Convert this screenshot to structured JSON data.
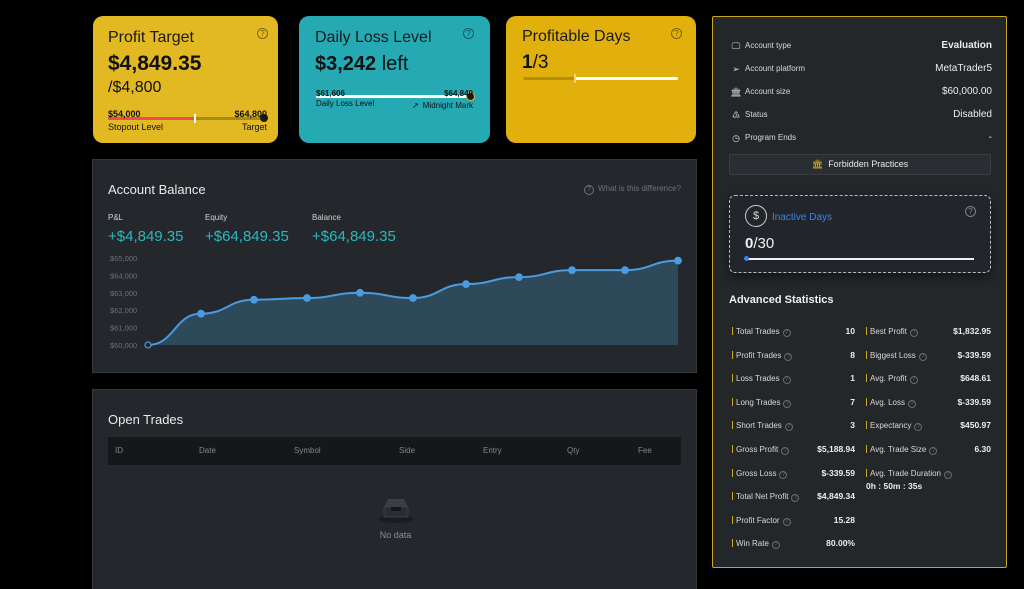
{
  "profit_target": {
    "title": "Profit Target",
    "current": "$4,849.35",
    "target_sub": "/$4,800",
    "stopout_value": "$54,000",
    "stopout_label": "Stopout Level",
    "target_value": "$64,800",
    "target_label": "Target",
    "progress_fraction": 0.56,
    "colors": {
      "bg": "#e2b922",
      "fill": "#ef4a57"
    }
  },
  "daily_loss": {
    "title": "Daily Loss Level",
    "amount": "$3,242",
    "suffix": "left",
    "low_value": "$61,606",
    "low_label": "Daily Loss Level",
    "high_value": "$64,849",
    "midnight_label": "Midnight Mark",
    "colors": {
      "bg": "#25a9b3"
    }
  },
  "profitable_days": {
    "title": "Profitable Days",
    "done": "1",
    "total": "/3",
    "progress_fraction": 0.333,
    "colors": {
      "bg": "#e2b00c"
    }
  },
  "account_balance": {
    "title": "Account Balance",
    "diff_link": "What is this difference?",
    "pnl_label": "P&L",
    "pnl_value": "+$4,849.35",
    "equity_label": "Equity",
    "equity_value": "+$64,849.35",
    "balance_label": "Balance",
    "balance_value": "+$64,849.35"
  },
  "chart_data": {
    "type": "area",
    "x": [
      1,
      2,
      3,
      4,
      5,
      6,
      7,
      8,
      9,
      10,
      11
    ],
    "series": [
      {
        "values": [
          60000,
          61800,
          62600,
          62700,
          63000,
          62700,
          63500,
          63900,
          64300,
          64300,
          64849
        ]
      }
    ],
    "yticks": [
      "$60,000",
      "$61,000",
      "$62,000",
      "$63,000",
      "$64,000",
      "$65,000"
    ],
    "ylim": [
      60000,
      65000
    ],
    "colors": {
      "line": "#4a9be0",
      "area": "#2e4a5a"
    }
  },
  "open_trades": {
    "title": "Open Trades",
    "columns": [
      "ID",
      "Date",
      "Symbol",
      "Side",
      "Entry",
      "Qty",
      "Fee"
    ],
    "empty_text": "No data"
  },
  "account_info": {
    "rows": [
      {
        "icon": "monitor-icon",
        "glyph": "🖵",
        "label": "Account type",
        "value": "Evaluation",
        "bold": true
      },
      {
        "icon": "send-icon",
        "glyph": "➢",
        "label": "Account platform",
        "value": "MetaTrader5",
        "bold": false
      },
      {
        "icon": "bank-icon",
        "glyph": "🏛",
        "label": "Account size",
        "value": "$60,000.00",
        "bold": false
      },
      {
        "icon": "status-icon",
        "glyph": "♳",
        "label": "Status",
        "value": "Disabled",
        "bold": false
      },
      {
        "icon": "clock-icon",
        "glyph": "◷",
        "label": "Program Ends",
        "value": "-",
        "bold": false
      }
    ],
    "forbidden_label": "Forbidden Practices"
  },
  "inactive_days": {
    "label": "Inactive Days",
    "count": "0",
    "total": "/30"
  },
  "advanced_stats": {
    "title": "Advanced Statistics",
    "left": [
      {
        "label": "Total Trades",
        "value": "10"
      },
      {
        "label": "Profit Trades",
        "value": "8"
      },
      {
        "label": "Loss Trades",
        "value": "1"
      },
      {
        "label": "Long Trades",
        "value": "7"
      },
      {
        "label": "Short Trades",
        "value": "3"
      },
      {
        "label": "Gross Profit",
        "value": "$5,188.94"
      },
      {
        "label": "Gross Loss",
        "value": "$-339.59"
      },
      {
        "label": "Total Net Profit",
        "value": "$4,849.34"
      },
      {
        "label": "Profit Factor",
        "value": "15.28"
      },
      {
        "label": "Win Rate",
        "value": "80.00%"
      }
    ],
    "right": [
      {
        "label": "Best Profit",
        "value": "$1,832.95"
      },
      {
        "label": "Biggest Loss",
        "value": "$-339.59"
      },
      {
        "label": "Avg. Profit",
        "value": "$648.61"
      },
      {
        "label": "Avg. Loss",
        "value": "$-339.59"
      },
      {
        "label": "Expectancy",
        "value": "$450.97"
      },
      {
        "label": "Avg. Trade Size",
        "value": "6.30"
      },
      {
        "label": "Avg. Trade Duration",
        "value": "0h : 50m : 35s",
        "below": true
      }
    ]
  }
}
